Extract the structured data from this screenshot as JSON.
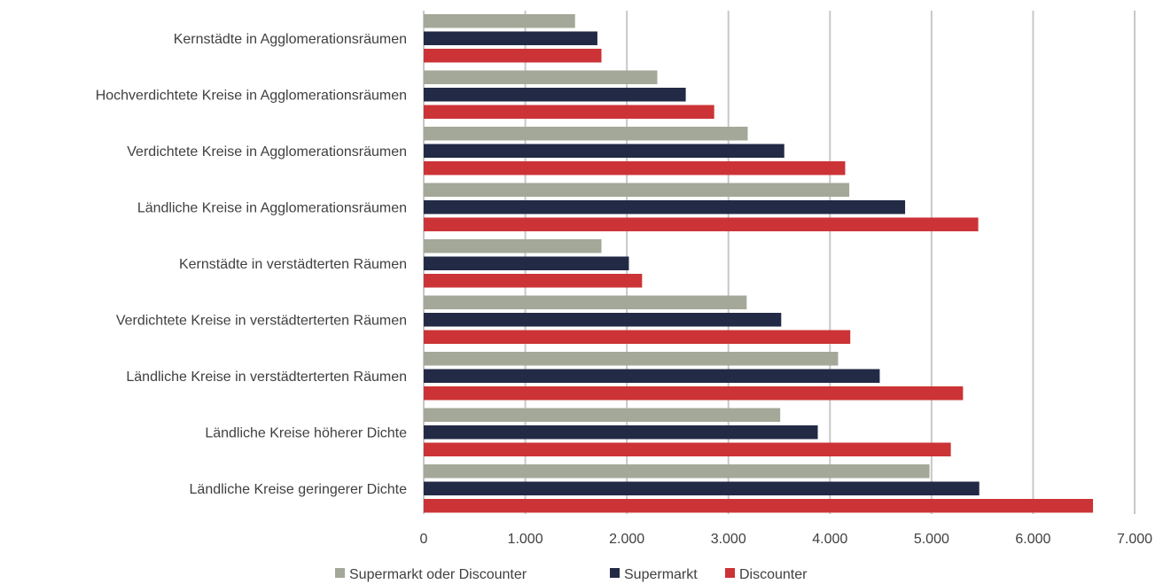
{
  "chart_data": {
    "type": "bar",
    "orientation": "horizontal",
    "categories": [
      "Kernstädte in Agglomerationsräumen",
      "Hochverdichtete Kreise in Agglomerationsräumen",
      "Verdichtete Kreise in Agglomerationsräumen",
      "Ländliche Kreise in Agglomerationsräumen",
      "Kernstädte in verstädterten Räumen",
      "Verdichtete Kreise in verstädterterten Räumen",
      "Ländliche Kreise in verstädterterten Räumen",
      "Ländliche Kreise höherer Dichte",
      "Ländliche Kreise geringerer Dichte"
    ],
    "series": [
      {
        "name": "Supermarkt oder Discounter",
        "color": "#a3a898",
        "values": [
          1490,
          2300,
          3190,
          4190,
          1750,
          3180,
          4080,
          3510,
          4980
        ]
      },
      {
        "name": "Supermarkt",
        "color": "#222a45",
        "values": [
          1710,
          2580,
          3550,
          4740,
          2020,
          3520,
          4490,
          3880,
          5470
        ]
      },
      {
        "name": "Discounter",
        "color": "#cc3336",
        "values": [
          1750,
          2860,
          4150,
          5460,
          2150,
          4200,
          5310,
          5190,
          6590
        ]
      }
    ],
    "ticks": [
      "0",
      "1.000",
      "2.000",
      "3.000",
      "4.000",
      "5.000",
      "6.000",
      "7.000"
    ],
    "xlim": [
      0,
      7000
    ],
    "grid": "vertical",
    "legend_position": "bottom"
  }
}
